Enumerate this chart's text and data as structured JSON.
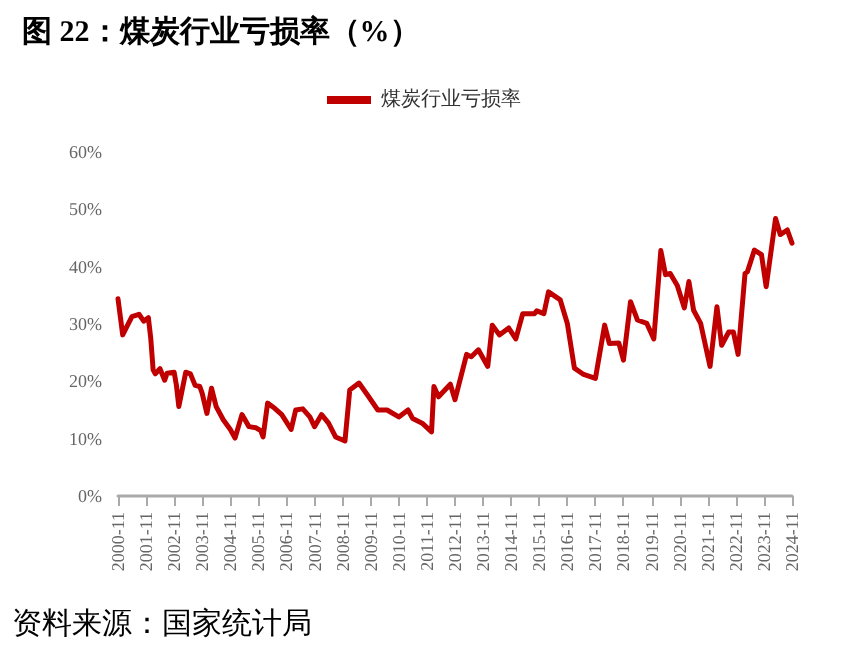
{
  "chart_data": {
    "type": "line",
    "title": "图 22：煤炭行业亏损率（%）",
    "annotations": [
      "资料来源：国家统计局"
    ],
    "x": [
      "2000-11",
      "2001-01",
      "2001-05",
      "2001-08",
      "2001-10",
      "2001-12",
      "2002-01",
      "2002-02",
      "2002-03",
      "2002-05",
      "2002-07",
      "2002-08",
      "2002-11",
      "2002-12",
      "2003-01",
      "2003-04",
      "2003-06",
      "2003-08",
      "2003-10",
      "2003-11",
      "2004-01",
      "2004-03",
      "2004-05",
      "2004-08",
      "2004-11",
      "2005-01",
      "2005-04",
      "2005-07",
      "2005-10",
      "2005-12",
      "2006-01",
      "2006-03",
      "2006-06",
      "2006-09",
      "2007-01",
      "2007-03",
      "2007-06",
      "2007-09",
      "2007-11",
      "2008-02",
      "2008-05",
      "2008-08",
      "2008-12",
      "2009-02",
      "2009-06",
      "2009-10",
      "2010-02",
      "2010-06",
      "2010-11",
      "2011-03",
      "2011-05",
      "2011-09",
      "2012-01",
      "2012-02",
      "2012-04",
      "2012-09",
      "2012-11",
      "2013-04",
      "2013-06",
      "2013-09",
      "2014-01",
      "2014-03",
      "2014-06",
      "2014-10",
      "2015-01",
      "2015-04",
      "2015-09",
      "2015-10",
      "2016-01",
      "2016-03",
      "2016-08",
      "2016-11",
      "2017-02",
      "2017-06",
      "2017-11",
      "2018-03",
      "2018-05",
      "2018-09",
      "2018-11",
      "2019-02",
      "2019-05",
      "2019-09",
      "2019-12",
      "2020-03",
      "2020-05",
      "2020-07",
      "2020-10",
      "2021-01",
      "2021-03",
      "2021-05",
      "2021-08",
      "2021-12",
      "2022-03",
      "2022-05",
      "2022-08",
      "2022-10",
      "2022-12",
      "2023-03",
      "2023-04",
      "2023-07",
      "2023-10",
      "2023-12",
      "2024-04",
      "2024-06",
      "2024-09",
      "2024-11"
    ],
    "series": [
      {
        "name": "煤炭行业亏损率",
        "color": "#c00000",
        "values": [
          34.4,
          28.1,
          31.3,
          31.7,
          30.5,
          31.1,
          27.5,
          22.0,
          21.3,
          22.2,
          20.2,
          21.4,
          21.6,
          19.3,
          15.6,
          21.6,
          21.3,
          19.3,
          19.1,
          17.9,
          14.4,
          18.8,
          15.6,
          13.3,
          11.6,
          10.1,
          14.2,
          12.1,
          11.9,
          11.4,
          10.3,
          16.2,
          15.3,
          14.2,
          11.6,
          15.0,
          15.2,
          13.8,
          12.1,
          14.2,
          12.7,
          10.3,
          9.6,
          18.5,
          19.7,
          17.4,
          15.0,
          15.0,
          13.8,
          15.0,
          13.5,
          12.7,
          11.2,
          19.1,
          17.3,
          19.5,
          16.8,
          24.7,
          24.3,
          25.5,
          22.6,
          29.8,
          28.1,
          29.3,
          27.4,
          31.8,
          31.8,
          32.3,
          31.8,
          35.6,
          34.2,
          30.1,
          22.3,
          21.2,
          20.5,
          29.8,
          26.6,
          26.7,
          23.7,
          33.9,
          30.7,
          30.1,
          27.4,
          42.8,
          38.6,
          38.8,
          36.7,
          32.8,
          37.4,
          32.4,
          30.1,
          22.6,
          33.0,
          26.3,
          28.6,
          28.6,
          24.7,
          38.8,
          39.1,
          42.9,
          42.1,
          36.5,
          48.4,
          45.6,
          46.4,
          44.1
        ]
      }
    ],
    "xlim": [
      "2000-11",
      "2024-11"
    ],
    "xticks": [
      "2000-11",
      "2001-11",
      "2002-11",
      "2003-11",
      "2004-11",
      "2005-11",
      "2006-11",
      "2007-11",
      "2008-11",
      "2009-11",
      "2010-11",
      "2011-11",
      "2012-11",
      "2013-11",
      "2014-11",
      "2015-11",
      "2016-11",
      "2017-11",
      "2018-11",
      "2019-11",
      "2020-11",
      "2021-11",
      "2022-11",
      "2023-11",
      "2024-11"
    ],
    "ylim": [
      0,
      60
    ],
    "yticks": [
      {
        "value": 0,
        "label": "0%"
      },
      {
        "value": 10,
        "label": "10%"
      },
      {
        "value": 20,
        "label": "20%"
      },
      {
        "value": 30,
        "label": "30%"
      },
      {
        "value": 40,
        "label": "40%"
      },
      {
        "value": 50,
        "label": "50%"
      },
      {
        "value": 60,
        "label": "60%"
      }
    ],
    "legend": "top",
    "grid": false,
    "marker": "none",
    "line_style": "solid"
  }
}
